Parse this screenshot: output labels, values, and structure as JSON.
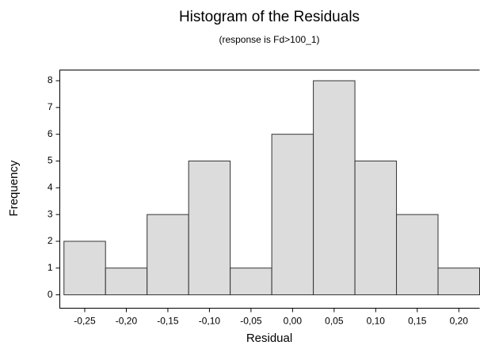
{
  "chart_data": {
    "type": "histogram",
    "title": "Histogram of the Residuals",
    "subtitle": "(response is Fd>100_1)",
    "x_label": "Residual",
    "y_label": "Frequency",
    "bins": [
      -0.275,
      -0.225,
      -0.175,
      -0.125,
      -0.075,
      -0.025,
      0.025,
      0.075,
      0.125,
      0.175,
      0.225
    ],
    "values": [
      2,
      1,
      3,
      5,
      1,
      6,
      8,
      5,
      3,
      1
    ],
    "color": "#dcdcdc",
    "xlim": [
      -0.28,
      0.225
    ],
    "ylim": [
      -0.5,
      8.4
    ],
    "xticks": [
      {
        "value": -0.25,
        "label": "-0,25"
      },
      {
        "value": -0.2,
        "label": "-0,20"
      },
      {
        "value": -0.15,
        "label": "-0,15"
      },
      {
        "value": -0.1,
        "label": "-0,10"
      },
      {
        "value": -0.05,
        "label": "-0,05"
      },
      {
        "value": 0,
        "label": "0,00"
      },
      {
        "value": 0.05,
        "label": "0,05"
      },
      {
        "value": 0.1,
        "label": "0,10"
      },
      {
        "value": 0.15,
        "label": "0,15"
      },
      {
        "value": 0.2,
        "label": "0,20"
      }
    ],
    "yticks": [
      0,
      1,
      2,
      3,
      4,
      5,
      6,
      7,
      8
    ]
  }
}
